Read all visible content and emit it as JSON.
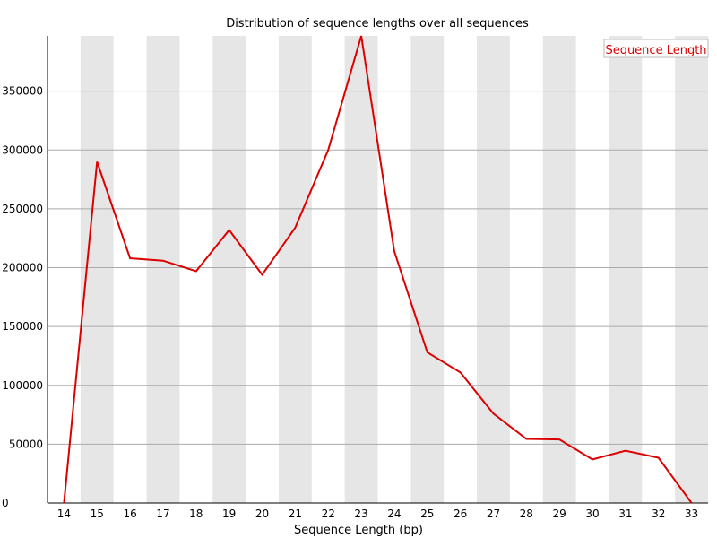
{
  "chart_data": {
    "type": "line",
    "title": "Distribution of sequence lengths over all sequences",
    "xlabel": "Sequence Length (bp)",
    "ylabel": "",
    "categories": [
      "14",
      "15",
      "16",
      "17",
      "18",
      "19",
      "20",
      "21",
      "22",
      "23",
      "24",
      "25",
      "26",
      "27",
      "28",
      "29",
      "30",
      "31",
      "32",
      "33"
    ],
    "y_ticks": [
      0,
      50000,
      100000,
      150000,
      200000,
      250000,
      300000,
      350000
    ],
    "y_tick_labels": [
      "0",
      "50000",
      "100000",
      "150000",
      "200000",
      "250000",
      "300000",
      "350000"
    ],
    "ylim": [
      0,
      397000
    ],
    "grid": true,
    "alternating_bands": true,
    "legend_position": "top-right",
    "series": [
      {
        "name": "Sequence Length",
        "color": "#dd0000",
        "values": [
          0,
          290000,
          208000,
          206000,
          197000,
          232000,
          194000,
          234000,
          300000,
          397000,
          214000,
          128000,
          111000,
          76000,
          54500,
          54000,
          37000,
          44500,
          38500,
          0
        ]
      }
    ]
  }
}
